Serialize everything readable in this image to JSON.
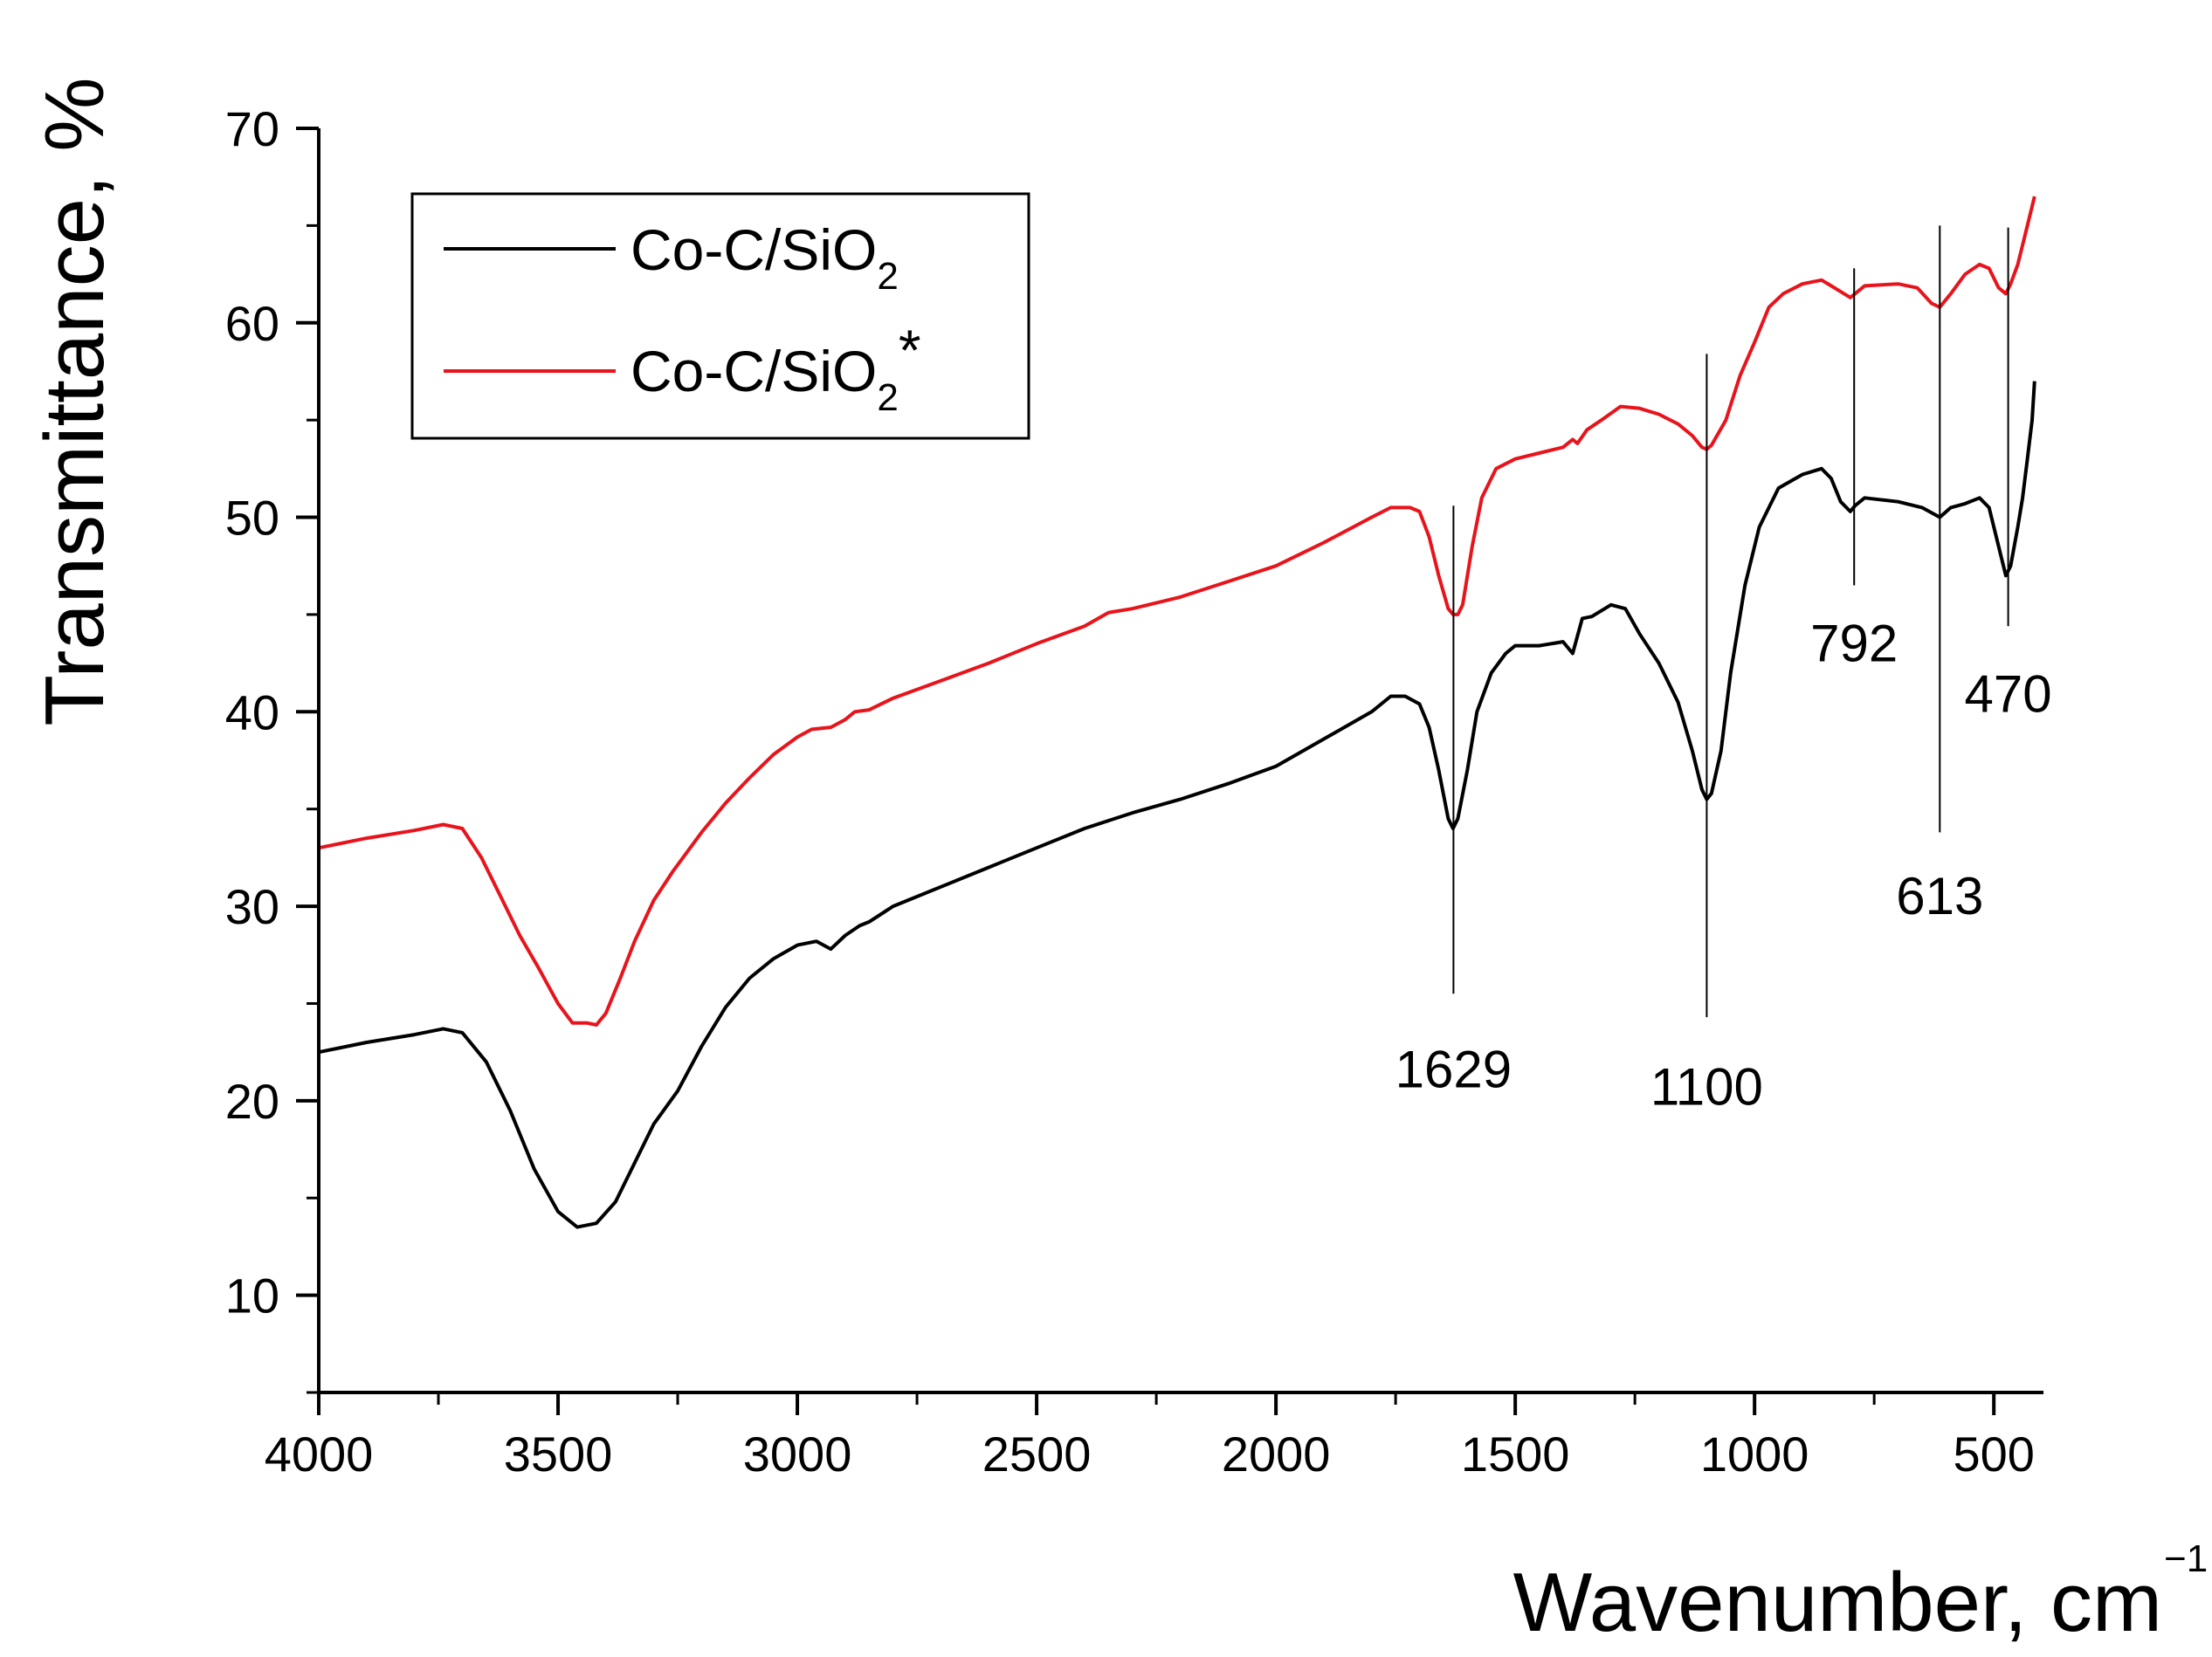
{
  "chart_data": {
    "type": "line",
    "xlabel": "Wavenumber, cm",
    "xlabel_superscript": "−1",
    "ylabel": "Transmittance, %",
    "xlim": [
      4000,
      400
    ],
    "ylim": [
      5,
      70
    ],
    "x_axis_reversed": true,
    "x_ticks": [
      4000,
      3500,
      3000,
      2500,
      2000,
      1500,
      1000,
      500
    ],
    "y_ticks": [
      10,
      20,
      30,
      40,
      50,
      60,
      70
    ],
    "legend_position": "top-left",
    "series": [
      {
        "name": "Co-C/SiO",
        "name_subscript": "2",
        "name_suffix": "",
        "color": "#000000",
        "points": [
          [
            4000,
            22.5
          ],
          [
            3900,
            23.0
          ],
          [
            3800,
            23.4
          ],
          [
            3740,
            23.7
          ],
          [
            3700,
            23.5
          ],
          [
            3650,
            22.0
          ],
          [
            3600,
            19.5
          ],
          [
            3550,
            16.5
          ],
          [
            3500,
            14.3
          ],
          [
            3460,
            13.5
          ],
          [
            3420,
            13.7
          ],
          [
            3380,
            14.8
          ],
          [
            3340,
            16.8
          ],
          [
            3300,
            18.8
          ],
          [
            3250,
            20.5
          ],
          [
            3200,
            22.8
          ],
          [
            3150,
            24.8
          ],
          [
            3100,
            26.3
          ],
          [
            3050,
            27.3
          ],
          [
            3000,
            28.0
          ],
          [
            2960,
            28.2
          ],
          [
            2930,
            27.8
          ],
          [
            2900,
            28.5
          ],
          [
            2870,
            29.0
          ],
          [
            2850,
            29.2
          ],
          [
            2800,
            30.0
          ],
          [
            2700,
            31.0
          ],
          [
            2600,
            32.0
          ],
          [
            2500,
            33.0
          ],
          [
            2400,
            34.0
          ],
          [
            2300,
            34.8
          ],
          [
            2200,
            35.5
          ],
          [
            2100,
            36.3
          ],
          [
            2000,
            37.2
          ],
          [
            1900,
            38.6
          ],
          [
            1800,
            40.0
          ],
          [
            1760,
            40.8
          ],
          [
            1730,
            40.8
          ],
          [
            1700,
            40.4
          ],
          [
            1680,
            39.2
          ],
          [
            1660,
            37.0
          ],
          [
            1640,
            34.5
          ],
          [
            1630,
            34.0
          ],
          [
            1620,
            34.5
          ],
          [
            1600,
            37.0
          ],
          [
            1580,
            40.0
          ],
          [
            1550,
            42.0
          ],
          [
            1520,
            43.0
          ],
          [
            1500,
            43.4
          ],
          [
            1450,
            43.4
          ],
          [
            1400,
            43.6
          ],
          [
            1380,
            43.0
          ],
          [
            1360,
            44.8
          ],
          [
            1340,
            44.9
          ],
          [
            1300,
            45.5
          ],
          [
            1270,
            45.3
          ],
          [
            1240,
            44.0
          ],
          [
            1200,
            42.5
          ],
          [
            1160,
            40.5
          ],
          [
            1130,
            38.0
          ],
          [
            1110,
            36.0
          ],
          [
            1100,
            35.5
          ],
          [
            1090,
            35.8
          ],
          [
            1070,
            38.0
          ],
          [
            1050,
            42.0
          ],
          [
            1020,
            46.5
          ],
          [
            990,
            49.5
          ],
          [
            950,
            51.5
          ],
          [
            900,
            52.2
          ],
          [
            860,
            52.5
          ],
          [
            840,
            52.0
          ],
          [
            820,
            50.8
          ],
          [
            800,
            50.3
          ],
          [
            790,
            50.6
          ],
          [
            770,
            51.0
          ],
          [
            700,
            50.8
          ],
          [
            650,
            50.5
          ],
          [
            613,
            50.0
          ],
          [
            590,
            50.5
          ],
          [
            560,
            50.7
          ],
          [
            530,
            51.0
          ],
          [
            510,
            50.5
          ],
          [
            490,
            48.5
          ],
          [
            475,
            47.0
          ],
          [
            465,
            47.5
          ],
          [
            450,
            49.5
          ],
          [
            440,
            51.0
          ],
          [
            430,
            53.0
          ],
          [
            420,
            55.0
          ],
          [
            415,
            57.0
          ]
        ]
      },
      {
        "name": "Co-C/SiO",
        "name_subscript": "2",
        "name_suffix": "*",
        "color": "#e8141c",
        "points": [
          [
            4000,
            33.0
          ],
          [
            3900,
            33.5
          ],
          [
            3800,
            33.9
          ],
          [
            3740,
            34.2
          ],
          [
            3700,
            34.0
          ],
          [
            3660,
            32.5
          ],
          [
            3620,
            30.5
          ],
          [
            3580,
            28.5
          ],
          [
            3540,
            26.8
          ],
          [
            3500,
            25.0
          ],
          [
            3470,
            24.0
          ],
          [
            3440,
            24.0
          ],
          [
            3420,
            23.9
          ],
          [
            3400,
            24.5
          ],
          [
            3370,
            26.3
          ],
          [
            3340,
            28.2
          ],
          [
            3300,
            30.3
          ],
          [
            3260,
            31.8
          ],
          [
            3230,
            32.8
          ],
          [
            3200,
            33.8
          ],
          [
            3150,
            35.3
          ],
          [
            3100,
            36.6
          ],
          [
            3050,
            37.8
          ],
          [
            3000,
            38.7
          ],
          [
            2970,
            39.1
          ],
          [
            2930,
            39.2
          ],
          [
            2900,
            39.6
          ],
          [
            2880,
            40.0
          ],
          [
            2850,
            40.1
          ],
          [
            2800,
            40.7
          ],
          [
            2700,
            41.6
          ],
          [
            2600,
            42.5
          ],
          [
            2500,
            43.5
          ],
          [
            2400,
            44.4
          ],
          [
            2350,
            45.1
          ],
          [
            2300,
            45.3
          ],
          [
            2200,
            45.9
          ],
          [
            2100,
            46.7
          ],
          [
            2000,
            47.5
          ],
          [
            1900,
            48.7
          ],
          [
            1800,
            50.0
          ],
          [
            1760,
            50.5
          ],
          [
            1720,
            50.5
          ],
          [
            1700,
            50.3
          ],
          [
            1680,
            49.0
          ],
          [
            1660,
            47.0
          ],
          [
            1640,
            45.3
          ],
          [
            1630,
            45.0
          ],
          [
            1620,
            45.0
          ],
          [
            1610,
            45.5
          ],
          [
            1590,
            48.5
          ],
          [
            1570,
            51.0
          ],
          [
            1540,
            52.5
          ],
          [
            1500,
            53.0
          ],
          [
            1450,
            53.3
          ],
          [
            1400,
            53.6
          ],
          [
            1380,
            54.0
          ],
          [
            1370,
            53.8
          ],
          [
            1350,
            54.5
          ],
          [
            1320,
            55.0
          ],
          [
            1280,
            55.7
          ],
          [
            1240,
            55.6
          ],
          [
            1200,
            55.3
          ],
          [
            1160,
            54.8
          ],
          [
            1130,
            54.2
          ],
          [
            1110,
            53.6
          ],
          [
            1100,
            53.5
          ],
          [
            1090,
            53.7
          ],
          [
            1060,
            55.0
          ],
          [
            1030,
            57.3
          ],
          [
            1000,
            59.0
          ],
          [
            970,
            60.8
          ],
          [
            940,
            61.5
          ],
          [
            900,
            62.0
          ],
          [
            860,
            62.2
          ],
          [
            840,
            61.9
          ],
          [
            820,
            61.6
          ],
          [
            800,
            61.3
          ],
          [
            790,
            61.5
          ],
          [
            770,
            61.9
          ],
          [
            700,
            62.0
          ],
          [
            660,
            61.8
          ],
          [
            630,
            61.0
          ],
          [
            613,
            60.8
          ],
          [
            590,
            61.5
          ],
          [
            560,
            62.5
          ],
          [
            530,
            63.0
          ],
          [
            510,
            62.8
          ],
          [
            490,
            61.8
          ],
          [
            475,
            61.5
          ],
          [
            465,
            62.0
          ],
          [
            450,
            63.0
          ],
          [
            440,
            64.0
          ],
          [
            430,
            65.0
          ],
          [
            415,
            66.5
          ]
        ]
      }
    ],
    "annotations": [
      {
        "label": "1629",
        "x": 1629,
        "line_top": 50.6,
        "line_bottom": 25.5,
        "label_y": 20.7
      },
      {
        "label": "1100",
        "x": 1100,
        "line_top": 58.4,
        "line_bottom": 24.3,
        "label_y": 19.8
      },
      {
        "label": "792",
        "x": 792,
        "line_top": 62.8,
        "line_bottom": 46.5,
        "label_y": 42.6
      },
      {
        "label": "613",
        "x": 613,
        "line_top": 65.0,
        "line_bottom": 33.8,
        "label_y": 29.6
      },
      {
        "label": "470",
        "x": 470,
        "line_top": 64.9,
        "line_bottom": 44.4,
        "label_y": 40.0
      }
    ]
  }
}
